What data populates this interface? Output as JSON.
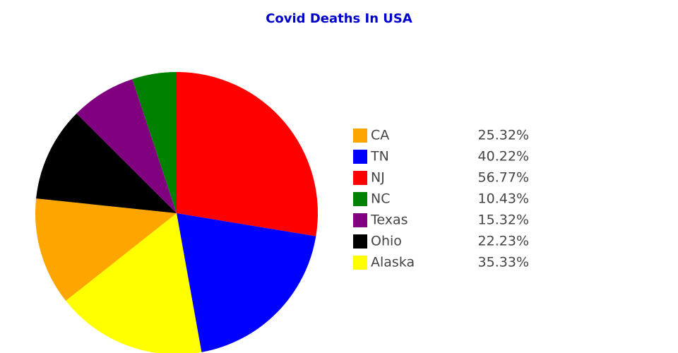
{
  "chart_data": {
    "type": "pie",
    "title": "Covid Deaths In USA",
    "categories": [
      "CA",
      "TN",
      "NJ",
      "NC",
      "Texas",
      "Ohio",
      "Alaska"
    ],
    "values": [
      25.32,
      40.22,
      56.77,
      10.43,
      15.32,
      22.23,
      35.33
    ],
    "value_labels": [
      "25.32%",
      "40.22%",
      "56.77%",
      "10.43%",
      "15.32%",
      "22.23%",
      "35.33%"
    ],
    "colors": [
      "orange",
      "blue",
      "red",
      "green",
      "purple",
      "black",
      "yellow"
    ],
    "sort": "descending"
  }
}
